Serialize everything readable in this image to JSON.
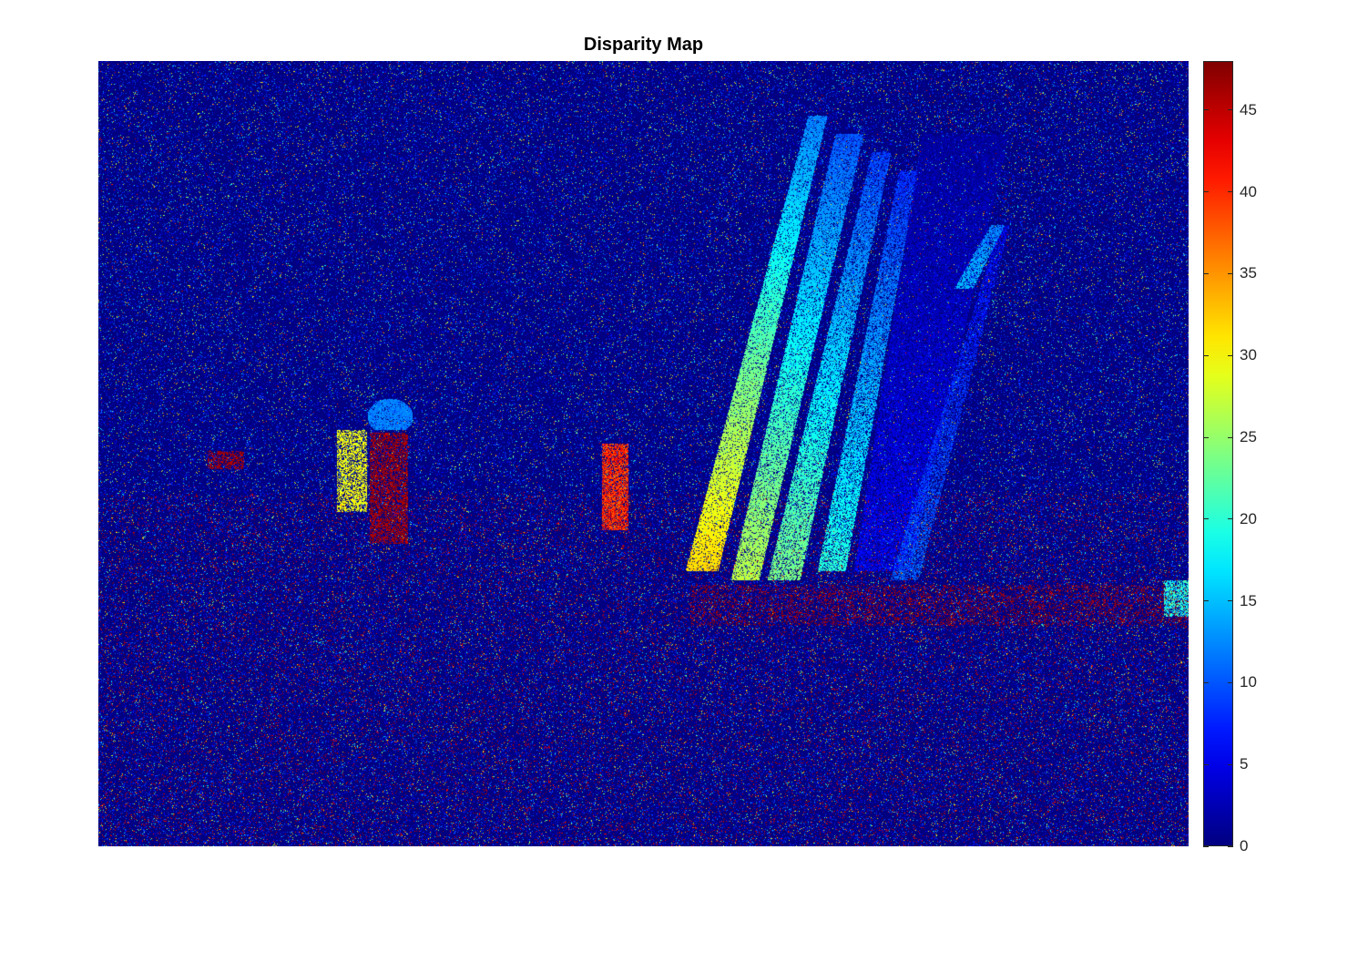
{
  "chart_data": {
    "type": "heatmap",
    "title": "Disparity Map",
    "colormap": "jet",
    "clim": [
      0,
      48
    ],
    "colorbar": {
      "location": "right",
      "ticks": [
        0,
        5,
        10,
        15,
        20,
        25,
        30,
        35,
        40,
        45
      ],
      "tick_labels": [
        "0",
        "5",
        "10",
        "15",
        "20",
        "25",
        "30",
        "35",
        "40",
        "45"
      ]
    },
    "axes_visible": false,
    "background_value": 0
  }
}
